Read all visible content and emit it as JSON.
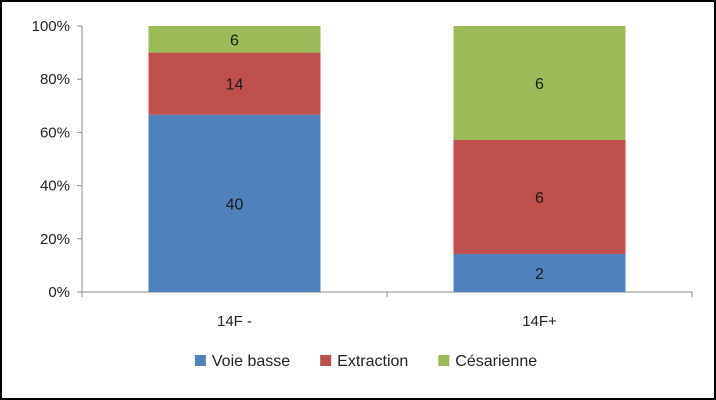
{
  "chart_data": {
    "type": "bar",
    "stacked": true,
    "normalized_percent": true,
    "categories": [
      "14F -",
      "14F+"
    ],
    "series": [
      {
        "name": "Voie basse",
        "values": [
          40,
          2
        ],
        "color": "#4F81BD"
      },
      {
        "name": "Extraction",
        "values": [
          14,
          6
        ],
        "color": "#C0504D"
      },
      {
        "name": "Césarienne",
        "values": [
          6,
          6
        ],
        "color": "#9BBB59"
      }
    ],
    "y_ticks": [
      "0%",
      "20%",
      "40%",
      "60%",
      "80%",
      "100%"
    ],
    "ylim": [
      0,
      100
    ],
    "grid": false,
    "legend_position": "bottom"
  }
}
